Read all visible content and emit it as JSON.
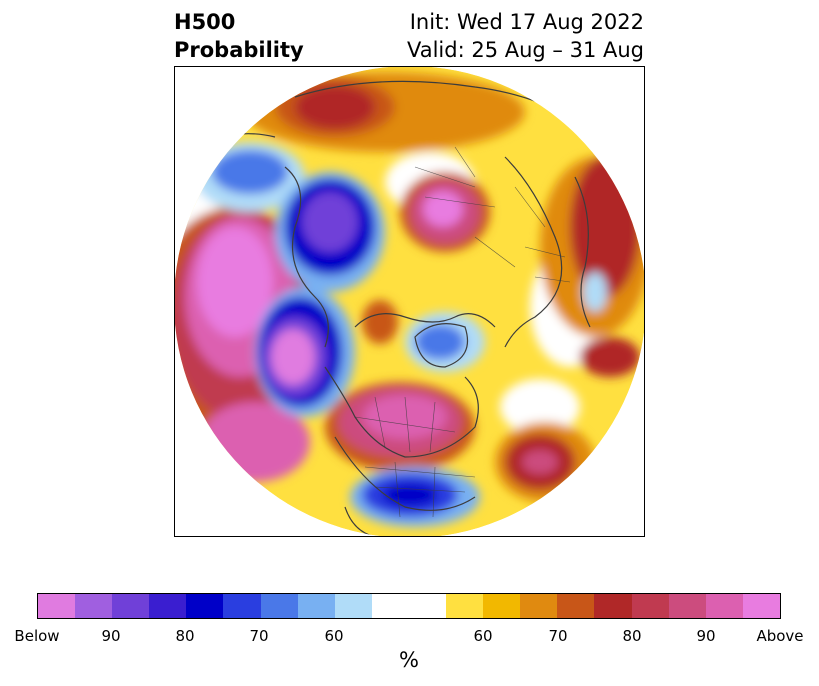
{
  "title": {
    "variable": "H500",
    "product": "Probability",
    "init": "Init: Wed 17 Aug 2022",
    "valid": "Valid: 25 Aug – 31 Aug"
  },
  "colorbar": {
    "unit": "%",
    "colors_below": [
      "#e07be0",
      "#a05fe0",
      "#7040d8",
      "#3a1ed0",
      "#0000c8",
      "#2a3ee0",
      "#4a78e8",
      "#78b0f2",
      "#b0dcf8"
    ],
    "color_neutral": "#ffffff",
    "colors_above": [
      "#ffe040",
      "#f2b800",
      "#e08a10",
      "#c85618",
      "#b02828",
      "#c03a50",
      "#cc4c7e",
      "#dc60b0",
      "#e87ce0"
    ],
    "tick_labels": [
      "Below",
      "90",
      "80",
      "70",
      "60",
      "60",
      "70",
      "80",
      "90",
      "Above"
    ]
  },
  "map": {
    "projection": "north-polar-stereographic",
    "colors": {
      "coast": "#3c3c3c"
    }
  }
}
